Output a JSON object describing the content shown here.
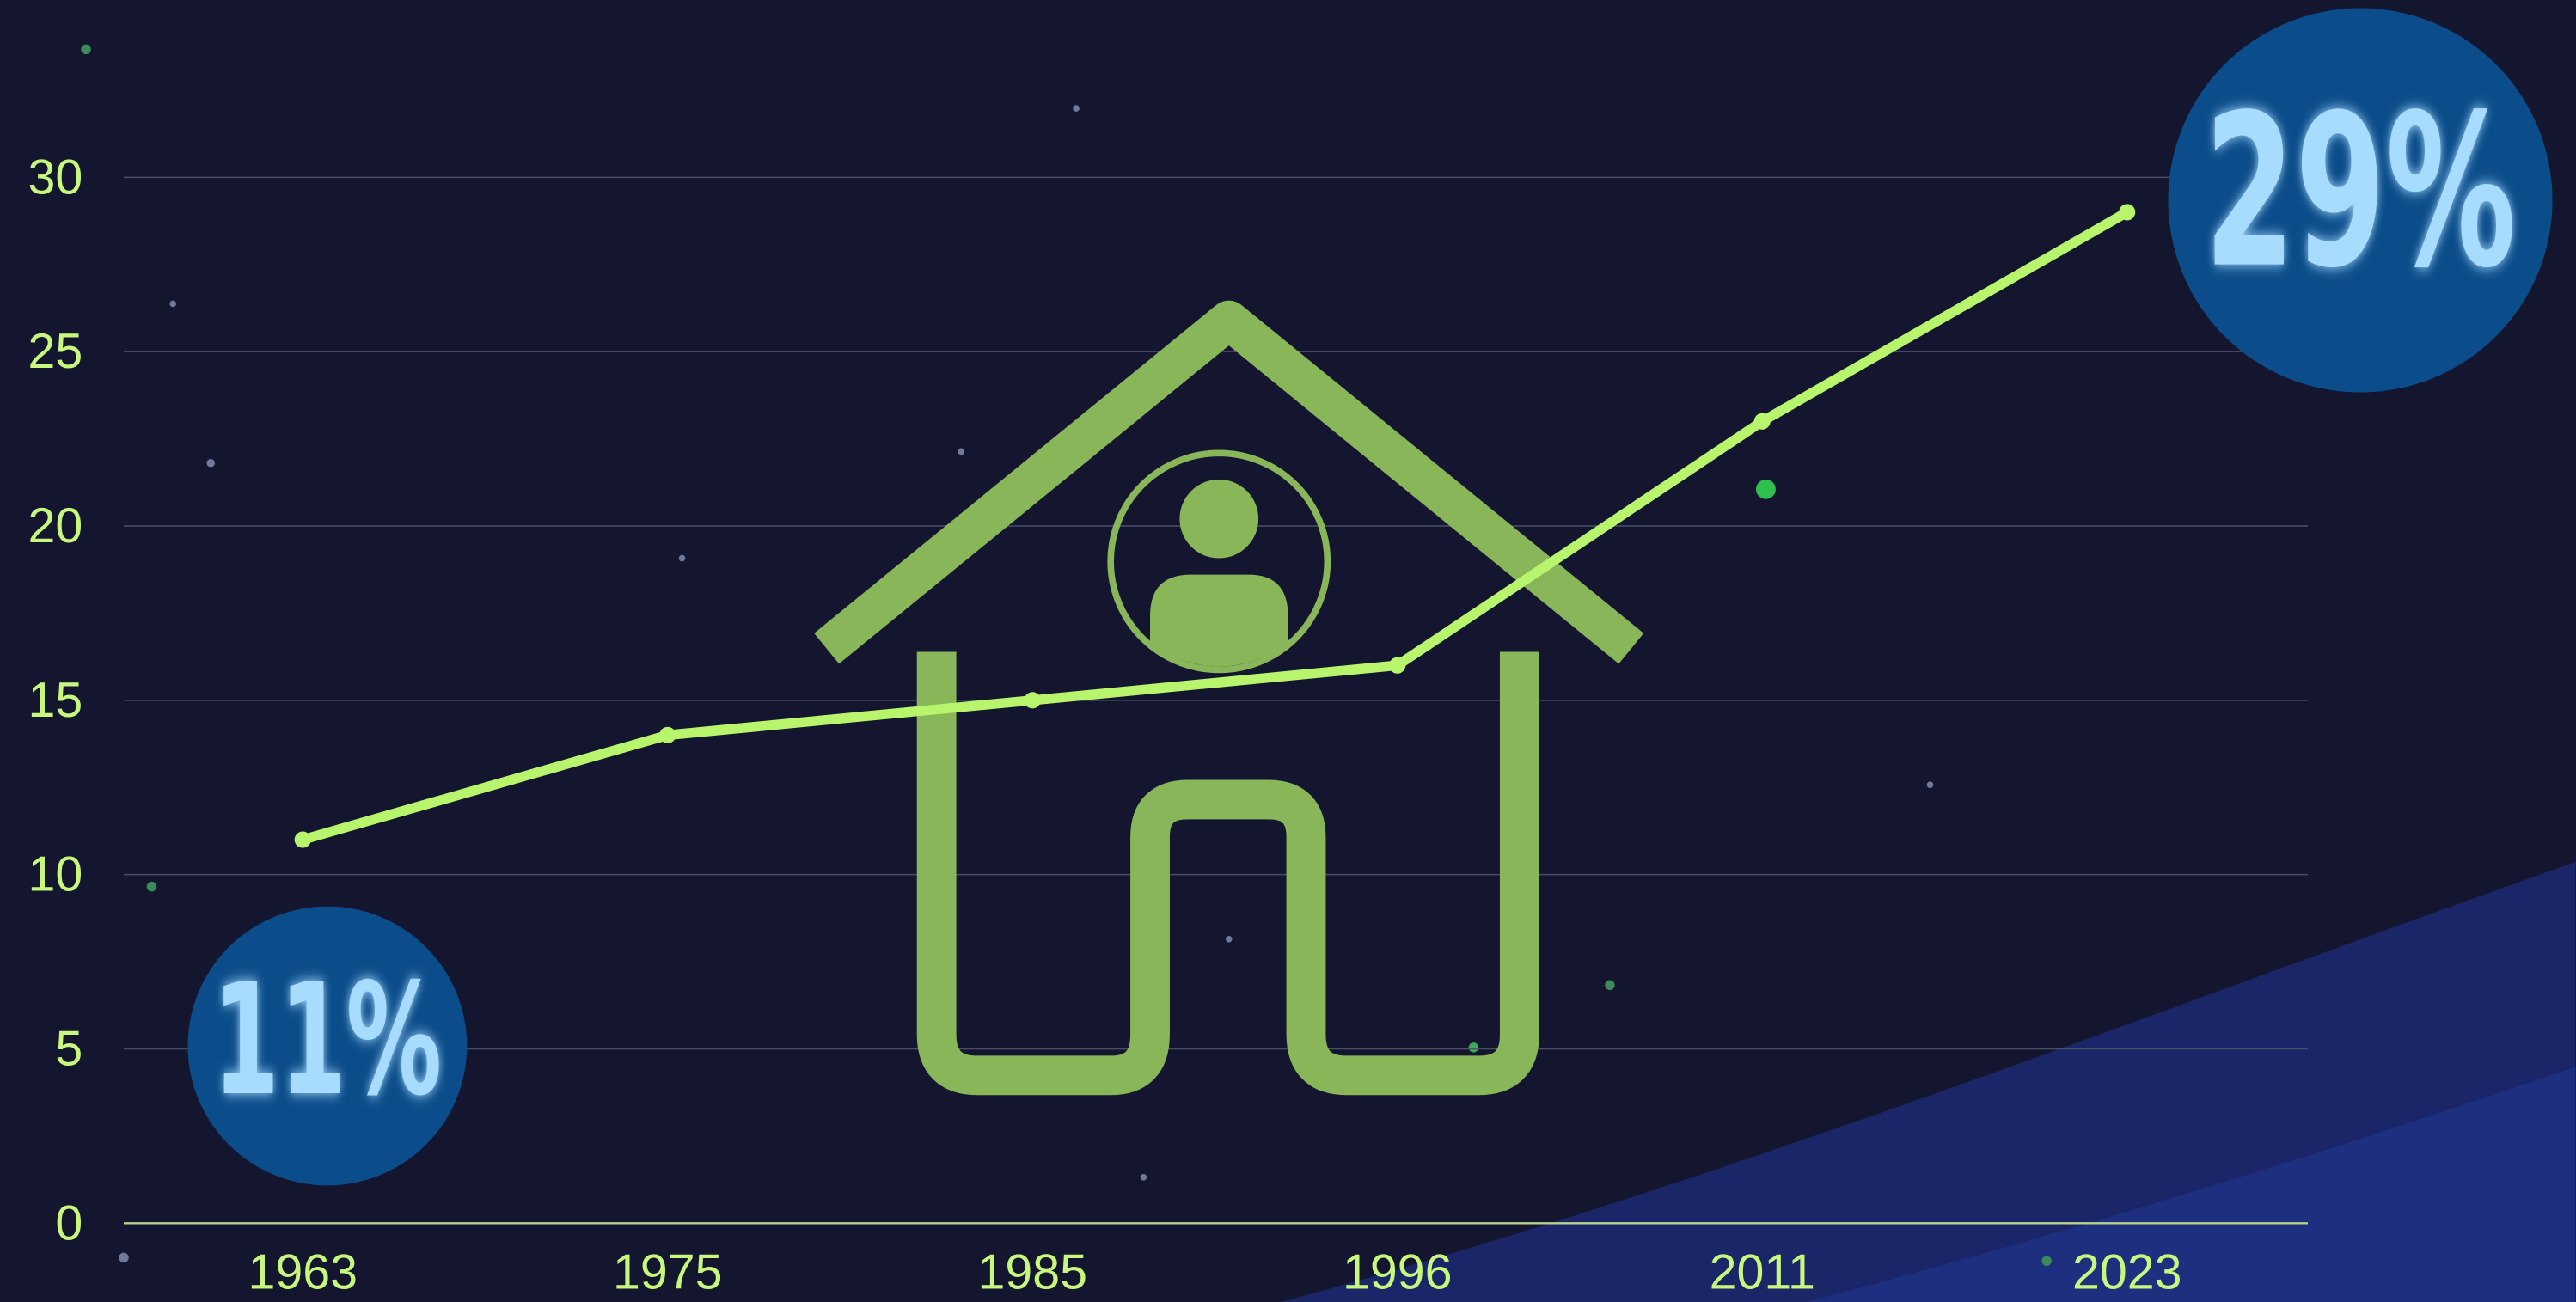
{
  "chart_data": {
    "type": "line",
    "categories": [
      "1963",
      "1975",
      "1985",
      "1996",
      "2011",
      "2023"
    ],
    "series": [
      {
        "color": "#b8f56c",
        "values": [
          11,
          14,
          15,
          16,
          23,
          29
        ]
      }
    ],
    "ylim": [
      0,
      30
    ],
    "yticks": [
      0,
      5,
      10,
      15,
      20,
      25,
      30
    ],
    "grid": true,
    "annotations": [
      "11%",
      "29%"
    ]
  }
}
